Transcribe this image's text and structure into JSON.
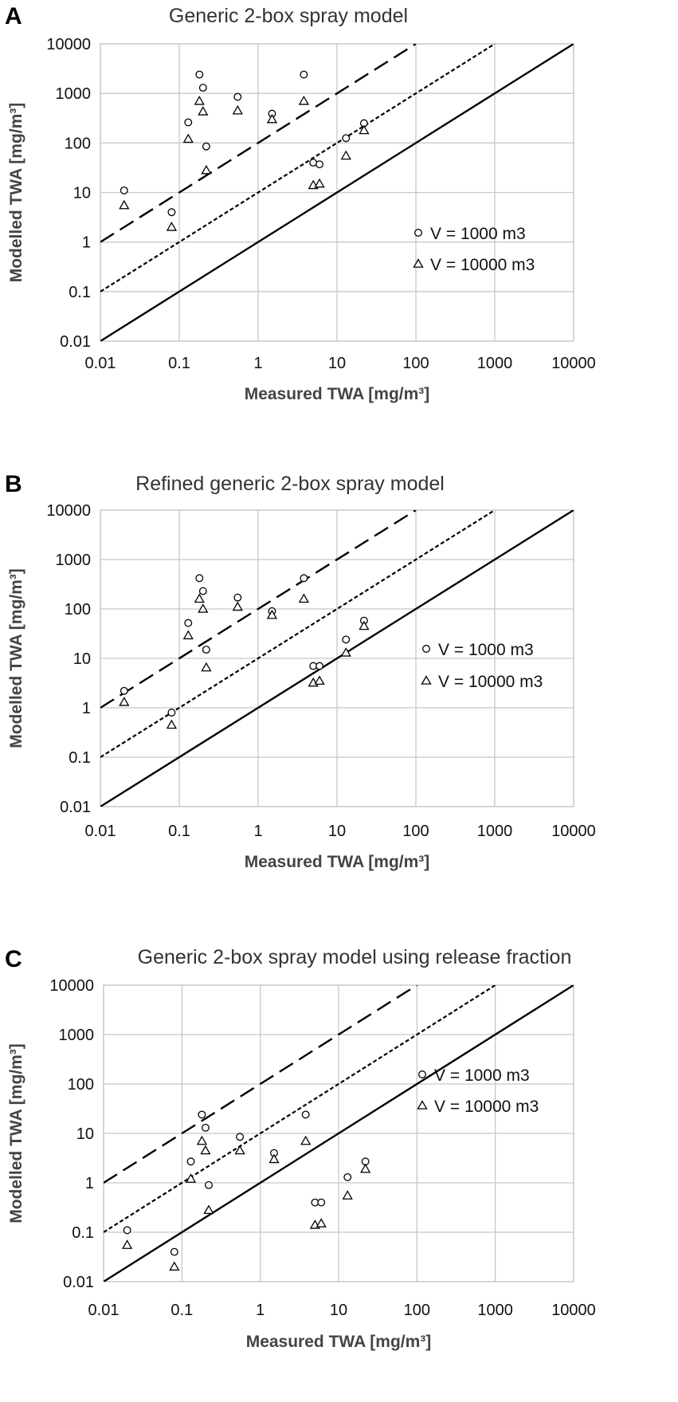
{
  "chart_data": [
    {
      "type": "scatter",
      "panel_label": "A",
      "title": "Generic 2-box spray model",
      "xlabel": "Measured TWA [mg/m³]",
      "ylabel": "Modelled TWA [mg/m³]",
      "x_scale": "log",
      "y_scale": "log",
      "xlim": [
        0.01,
        10000
      ],
      "ylim": [
        0.01,
        10000
      ],
      "xticks": [
        "0.01",
        "0.1",
        "1",
        "10",
        "100",
        "1000",
        "10000"
      ],
      "yticks": [
        "0.01",
        "0.1",
        "1",
        "10",
        "100",
        "1000",
        "10000"
      ],
      "grid": true,
      "legend_position": "right",
      "reference_lines": [
        {
          "style": "solid",
          "factor": 1
        },
        {
          "style": "dotted",
          "factor": 10
        },
        {
          "style": "dashed",
          "factor": 100
        }
      ],
      "series": [
        {
          "name": "V = 1000 m3",
          "marker": "circle",
          "points": [
            [
              0.02,
              11
            ],
            [
              0.08,
              4
            ],
            [
              0.13,
              260
            ],
            [
              0.18,
              2400
            ],
            [
              0.2,
              1300
            ],
            [
              0.22,
              85
            ],
            [
              0.55,
              850
            ],
            [
              1.5,
              390
            ],
            [
              3.8,
              2400
            ],
            [
              5,
              40
            ],
            [
              6,
              37
            ],
            [
              13,
              125
            ],
            [
              22,
              250
            ]
          ]
        },
        {
          "name": "V = 10000 m3",
          "marker": "triangle",
          "points": [
            [
              0.02,
              5.5
            ],
            [
              0.08,
              2
            ],
            [
              0.13,
              120
            ],
            [
              0.18,
              700
            ],
            [
              0.2,
              430
            ],
            [
              0.22,
              28
            ],
            [
              0.55,
              450
            ],
            [
              1.5,
              300
            ],
            [
              3.8,
              700
            ],
            [
              5,
              14
            ],
            [
              6,
              15
            ],
            [
              13,
              55
            ],
            [
              22,
              180
            ]
          ]
        }
      ]
    },
    {
      "type": "scatter",
      "panel_label": "B",
      "title": "Refined generic 2-box spray model",
      "xlabel": "Measured TWA [mg/m³]",
      "ylabel": "Modelled TWA [mg/m³]",
      "x_scale": "log",
      "y_scale": "log",
      "xlim": [
        0.01,
        10000
      ],
      "ylim": [
        0.01,
        10000
      ],
      "xticks": [
        "0.01",
        "0.1",
        "1",
        "10",
        "100",
        "1000",
        "10000"
      ],
      "yticks": [
        "0.01",
        "0.1",
        "1",
        "10",
        "100",
        "1000",
        "10000"
      ],
      "grid": true,
      "legend_position": "right",
      "reference_lines": [
        {
          "style": "solid",
          "factor": 1
        },
        {
          "style": "dotted",
          "factor": 10
        },
        {
          "style": "dashed",
          "factor": 100
        }
      ],
      "series": [
        {
          "name": "V = 1000 m3",
          "marker": "circle",
          "points": [
            [
              0.02,
              2.2
            ],
            [
              0.08,
              0.8
            ],
            [
              0.13,
              52
            ],
            [
              0.18,
              420
            ],
            [
              0.2,
              230
            ],
            [
              0.22,
              15
            ],
            [
              0.55,
              170
            ],
            [
              1.5,
              90
            ],
            [
              3.8,
              420
            ],
            [
              5,
              7
            ],
            [
              6,
              7
            ],
            [
              13,
              24
            ],
            [
              22,
              58
            ]
          ]
        },
        {
          "name": "V = 10000 m3",
          "marker": "triangle",
          "points": [
            [
              0.02,
              1.3
            ],
            [
              0.08,
              0.45
            ],
            [
              0.13,
              29
            ],
            [
              0.18,
              160
            ],
            [
              0.2,
              100
            ],
            [
              0.22,
              6.5
            ],
            [
              0.55,
              110
            ],
            [
              1.5,
              75
            ],
            [
              3.8,
              160
            ],
            [
              5,
              3.2
            ],
            [
              6,
              3.5
            ],
            [
              13,
              13
            ],
            [
              22,
              45
            ]
          ]
        }
      ]
    },
    {
      "type": "scatter",
      "panel_label": "C",
      "title": "Generic 2-box spray model using release fraction",
      "xlabel": "Measured TWA [mg/m³]",
      "ylabel": "Modelled TWA [mg/m³]",
      "x_scale": "log",
      "y_scale": "log",
      "xlim": [
        0.01,
        10000
      ],
      "ylim": [
        0.01,
        10000
      ],
      "xticks": [
        "0.01",
        "0.1",
        "1",
        "10",
        "100",
        "1000",
        "10000"
      ],
      "yticks": [
        "0.01",
        "0.1",
        "1",
        "10",
        "100",
        "1000",
        "10000"
      ],
      "grid": true,
      "legend_position": "right",
      "reference_lines": [
        {
          "style": "solid",
          "factor": 1
        },
        {
          "style": "dotted",
          "factor": 10
        },
        {
          "style": "dashed",
          "factor": 100
        }
      ],
      "series": [
        {
          "name": "V = 1000 m3",
          "marker": "circle",
          "points": [
            [
              0.02,
              0.11
            ],
            [
              0.08,
              0.04
            ],
            [
              0.13,
              2.7
            ],
            [
              0.18,
              24
            ],
            [
              0.2,
              13
            ],
            [
              0.22,
              0.9
            ],
            [
              0.55,
              8.5
            ],
            [
              1.5,
              4
            ],
            [
              3.8,
              24
            ],
            [
              5,
              0.4
            ],
            [
              6,
              0.4
            ],
            [
              13,
              1.3
            ],
            [
              22,
              2.7
            ]
          ]
        },
        {
          "name": "V = 10000 m3",
          "marker": "triangle",
          "points": [
            [
              0.02,
              0.055
            ],
            [
              0.08,
              0.02
            ],
            [
              0.13,
              1.2
            ],
            [
              0.18,
              7
            ],
            [
              0.2,
              4.5
            ],
            [
              0.22,
              0.28
            ],
            [
              0.55,
              4.5
            ],
            [
              1.5,
              3
            ],
            [
              3.8,
              7
            ],
            [
              5,
              0.14
            ],
            [
              6,
              0.15
            ],
            [
              13,
              0.55
            ],
            [
              22,
              1.9
            ]
          ]
        }
      ]
    }
  ]
}
